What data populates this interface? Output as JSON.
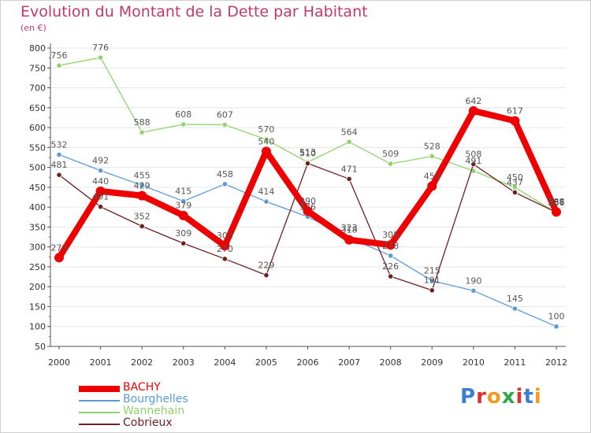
{
  "title": "Evolution du Montant de la Dette par Habitant",
  "unit_label": "(en €)",
  "logo_text": "Proxiti",
  "colors": {
    "title": "#c0396b",
    "grid": "#e6e6e6",
    "axis": "#555555",
    "BACHY": "#ee0000",
    "Bourghelles": "#5b9bd5",
    "Wannehain": "#8fd36a",
    "Cobrieux": "#6e1f1f"
  },
  "chart_data": {
    "type": "line",
    "title": "Evolution du Montant de la Dette par Habitant",
    "ylabel": "(en €)",
    "xlabel": "",
    "x": [
      "2000",
      "2001",
      "2002",
      "2003",
      "2004",
      "2005",
      "2006",
      "2007",
      "2008",
      "2009",
      "2010",
      "2011",
      "2012"
    ],
    "y_ticks": [
      50,
      100,
      150,
      200,
      250,
      300,
      350,
      400,
      450,
      500,
      550,
      600,
      650,
      700,
      750,
      800
    ],
    "ylim": [
      50,
      800
    ],
    "grid": true,
    "legend_position": "bottom-left",
    "series": [
      {
        "name": "BACHY",
        "color": "#ee0000",
        "values": [
          273,
          440,
          429,
          379,
          303,
          540,
          390,
          318,
          305,
          453,
          642,
          617,
          388
        ],
        "labels": [
          "273",
          "440",
          "429",
          "379",
          "303",
          "540",
          "390",
          "318",
          "305",
          "453",
          "642",
          "617",
          "388"
        ]
      },
      {
        "name": "Bourghelles",
        "color": "#5b9bd5",
        "values": [
          532,
          492,
          455,
          415,
          458,
          414,
          376,
          323,
          278,
          215,
          190,
          145,
          100
        ],
        "labels": [
          "532",
          "492",
          "455",
          "415",
          "458",
          "414",
          "376",
          "323",
          "278",
          "215",
          "190",
          "145",
          "100"
        ]
      },
      {
        "name": "Wannehain",
        "color": "#8fd36a",
        "values": [
          756,
          776,
          588,
          608,
          607,
          570,
          513,
          564,
          509,
          528,
          491,
          450,
          386
        ],
        "labels": [
          "756",
          "776",
          "588",
          "608",
          "607",
          "570",
          "513",
          "564",
          "509",
          "528",
          "491",
          "450",
          "386"
        ]
      },
      {
        "name": "Cobrieux",
        "color": "#6e1f1f",
        "values": [
          481,
          401,
          352,
          309,
          270,
          229,
          510,
          471,
          226,
          191,
          508,
          437,
          387
        ],
        "labels": [
          "481",
          "401",
          "352",
          "309",
          "270",
          "229",
          "510",
          "471",
          "226",
          "191",
          "508",
          "437",
          "387"
        ]
      }
    ]
  }
}
